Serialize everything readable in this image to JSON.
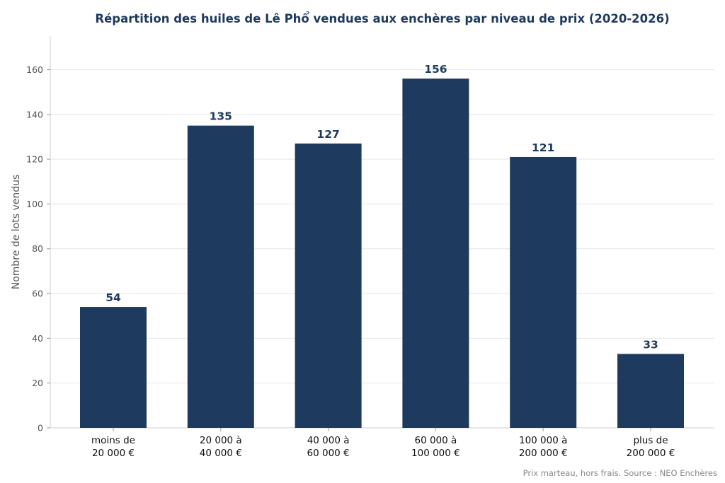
{
  "chart_data": {
    "type": "bar",
    "title": "Répartition des huiles de Lê Phổ vendues aux enchères par niveau de prix (2020-2026)",
    "xlabel": "",
    "ylabel": "Nombre de lots vendus",
    "categories": [
      [
        "moins de",
        "20 000 €"
      ],
      [
        "20 000 à",
        "40 000 €"
      ],
      [
        "40 000 à",
        "60 000 €"
      ],
      [
        "60 000 à",
        "100 000 €"
      ],
      [
        "100 000 à",
        "200 000 €"
      ],
      [
        "plus de",
        "200 000 €"
      ]
    ],
    "values": [
      54,
      135,
      127,
      156,
      121,
      33
    ],
    "ylim": [
      0,
      175
    ],
    "yticks": [
      0,
      20,
      40,
      60,
      80,
      100,
      120,
      140,
      160
    ],
    "grid": "horizontal",
    "bar_color": "#1f3a5f",
    "note": "Prix marteau, hors frais. Source : NEO Enchères"
  }
}
